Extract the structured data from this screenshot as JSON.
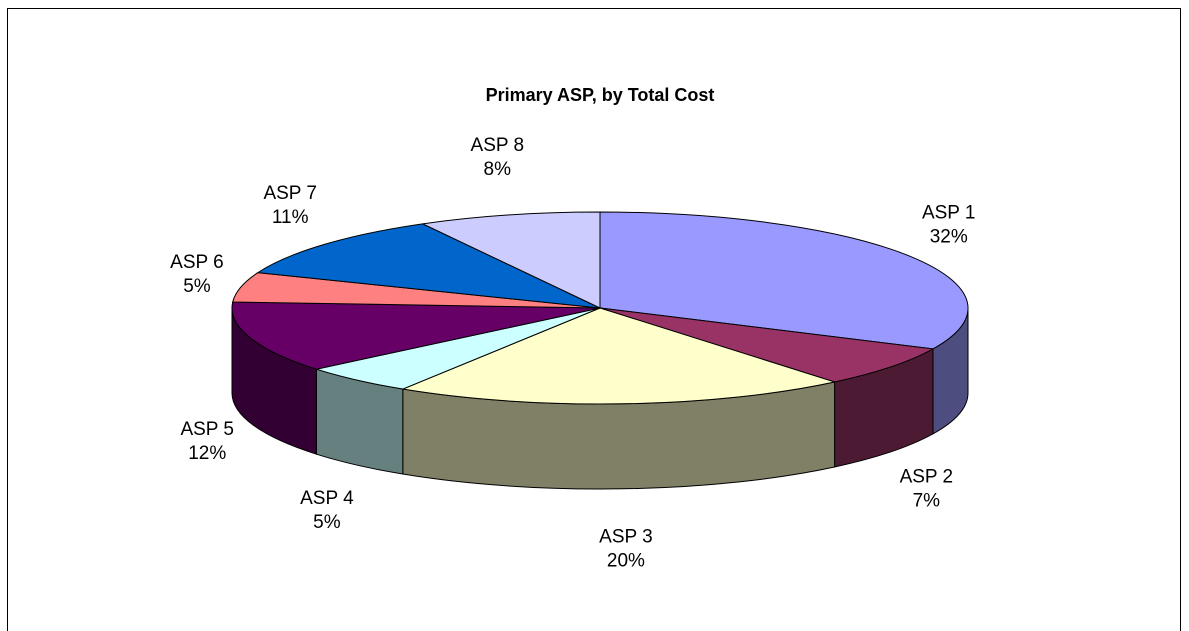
{
  "chart_data": {
    "type": "pie",
    "title": "Primary ASP, by Total Cost",
    "categories": [
      "ASP 1",
      "ASP 2",
      "ASP 3",
      "ASP 4",
      "ASP 5",
      "ASP 6",
      "ASP 7",
      "ASP 8"
    ],
    "values": [
      32,
      7,
      20,
      5,
      12,
      5,
      11,
      8
    ],
    "value_labels": [
      "32%",
      "7%",
      "20%",
      "5%",
      "12%",
      "5%",
      "11%",
      "8%"
    ],
    "colors": [
      "#9999ff",
      "#993366",
      "#ffffcc",
      "#ccffff",
      "#660066",
      "#ff8080",
      "#0066cc",
      "#ccccff"
    ]
  }
}
